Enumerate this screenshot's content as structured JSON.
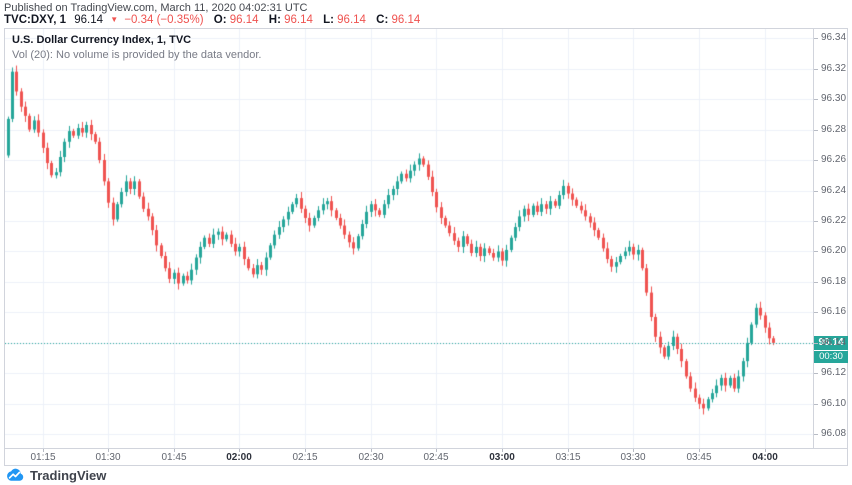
{
  "header": {
    "published_line": "Published on TradingView.com, March 11, 2020 04:02:31 UTC"
  },
  "symbol_bar": {
    "symbol": "TVC:DXY, 1",
    "last": "96.14",
    "direction_triangle": "▼",
    "change": "−0.34 (−0.35%)",
    "o_label": "O:",
    "o_value": "96.14",
    "h_label": "H:",
    "h_value": "96.14",
    "l_label": "L:",
    "l_value": "96.14",
    "c_label": "C:",
    "c_value": "96.14"
  },
  "legend": {
    "title": "U.S. Dollar Currency Index, 1, TVC",
    "volume_line": "Vol (20): No volume is provided by the data vendor."
  },
  "price_axis": {
    "current_price_label": "96.14",
    "countdown": "00:30"
  },
  "footer": {
    "brand": "TradingView"
  },
  "colors": {
    "up": "#26a69a",
    "down": "#ef5350",
    "grid": "#edf1f8",
    "border": "#d1d4dc",
    "axis_text": "#62666f",
    "axis_text_bold": "#2f333d",
    "red_text": "#ef5350",
    "current_label_bg": "#26a69a",
    "logo_blue": "#2196f3"
  },
  "chart_data": {
    "type": "candlestick",
    "title": "U.S. Dollar Currency Index, 1, TVC",
    "symbol": "TVC:DXY",
    "interval_minutes": 1,
    "start_time": "01:07",
    "end_time": "04:02",
    "current_price": 96.14,
    "change": -0.34,
    "change_pct": -0.35,
    "displayed_ohlc": {
      "o": 96.14,
      "h": 96.14,
      "l": 96.14,
      "c": 96.14
    },
    "session_high": 96.32,
    "session_low": 96.095,
    "grid": true,
    "legend_position": "top-left",
    "first_open": 96.263,
    "closes": [
      96.287,
      96.318,
      96.305,
      96.295,
      96.289,
      96.28,
      96.286,
      96.278,
      96.268,
      96.258,
      96.25,
      96.252,
      96.262,
      96.272,
      96.279,
      96.276,
      96.281,
      96.278,
      96.283,
      96.277,
      96.272,
      96.26,
      96.246,
      96.232,
      96.221,
      96.231,
      96.239,
      96.246,
      96.241,
      96.246,
      96.236,
      96.228,
      96.223,
      96.214,
      96.204,
      96.197,
      96.189,
      96.182,
      96.186,
      96.179,
      96.184,
      96.181,
      96.188,
      96.196,
      96.203,
      96.209,
      96.205,
      96.211,
      96.213,
      96.208,
      96.211,
      96.205,
      96.2,
      96.203,
      96.195,
      96.189,
      96.185,
      96.191,
      96.188,
      96.196,
      96.204,
      96.211,
      96.216,
      96.221,
      96.226,
      96.231,
      96.235,
      96.228,
      96.222,
      96.217,
      96.222,
      96.227,
      96.231,
      96.233,
      96.227,
      96.222,
      96.217,
      96.211,
      96.206,
      96.202,
      96.21,
      96.218,
      96.226,
      96.231,
      96.227,
      96.224,
      96.231,
      96.237,
      96.241,
      96.246,
      96.251,
      96.248,
      96.253,
      96.257,
      96.261,
      96.257,
      96.249,
      96.239,
      96.229,
      96.222,
      96.217,
      96.212,
      96.207,
      96.203,
      96.21,
      96.205,
      96.199,
      96.203,
      96.197,
      96.202,
      96.199,
      96.196,
      96.2,
      96.194,
      96.201,
      96.209,
      96.216,
      96.223,
      96.228,
      96.224,
      96.23,
      96.226,
      96.231,
      96.228,
      96.233,
      96.23,
      96.237,
      96.243,
      96.238,
      96.234,
      96.23,
      96.227,
      96.223,
      96.219,
      96.214,
      96.209,
      96.202,
      96.195,
      96.19,
      96.193,
      96.197,
      96.2,
      96.203,
      96.198,
      96.201,
      96.189,
      96.173,
      96.157,
      96.144,
      96.137,
      96.131,
      96.138,
      96.144,
      96.136,
      96.128,
      96.118,
      96.11,
      96.104,
      96.1,
      96.097,
      96.103,
      96.107,
      96.112,
      96.117,
      96.112,
      96.117,
      96.11,
      96.118,
      96.128,
      96.14,
      96.152,
      96.163,
      96.158,
      96.15,
      96.143,
      96.14
    ],
    "y_axis": {
      "top_price": 96.346,
      "bottom_price": 96.071,
      "tick_step": 0.02,
      "ticks": [
        96.34,
        96.32,
        96.3,
        96.28,
        96.26,
        96.24,
        96.22,
        96.2,
        96.18,
        96.16,
        96.14,
        96.12,
        96.1,
        96.08
      ]
    },
    "x_axis": {
      "ticks": [
        {
          "at": 8,
          "label": "01:15",
          "bold": false
        },
        {
          "at": 23,
          "label": "01:30",
          "bold": false
        },
        {
          "at": 38,
          "label": "01:45",
          "bold": false
        },
        {
          "at": 53,
          "label": "02:00",
          "bold": true
        },
        {
          "at": 68,
          "label": "02:15",
          "bold": false
        },
        {
          "at": 83,
          "label": "02:30",
          "bold": false
        },
        {
          "at": 98,
          "label": "02:45",
          "bold": false
        },
        {
          "at": 113,
          "label": "03:00",
          "bold": true
        },
        {
          "at": 128,
          "label": "03:15",
          "bold": false
        },
        {
          "at": 143,
          "label": "03:30",
          "bold": false
        },
        {
          "at": 158,
          "label": "03:45",
          "bold": false
        },
        {
          "at": 173,
          "label": "04:00",
          "bold": true
        }
      ]
    }
  }
}
